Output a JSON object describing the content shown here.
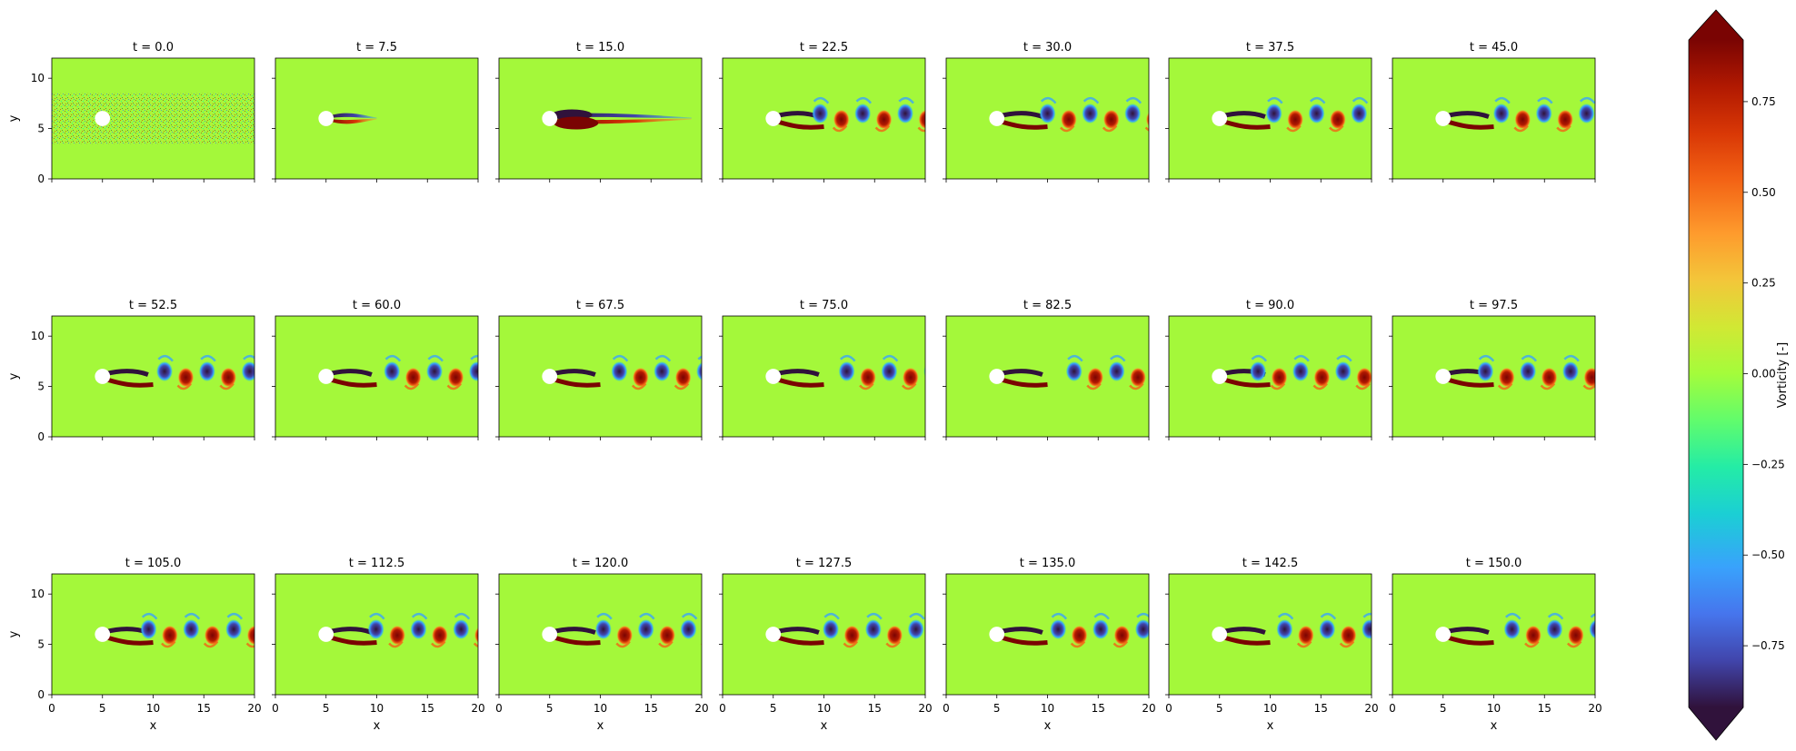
{
  "chart_data": {
    "type": "heatmap",
    "layout": {
      "rows": 3,
      "cols": 7
    },
    "xlabel": "x",
    "ylabel": "y",
    "xlim": [
      0,
      20
    ],
    "ylim": [
      0,
      12
    ],
    "xticks": [
      0,
      5,
      10,
      15,
      20
    ],
    "yticks": [
      0,
      5,
      10
    ],
    "cylinder": {
      "x": 5,
      "y": 6,
      "r": 0.75
    },
    "panels": [
      {
        "t": 0.0,
        "title": "t = 0.0"
      },
      {
        "t": 7.5,
        "title": "t = 7.5"
      },
      {
        "t": 15.0,
        "title": "t = 15.0"
      },
      {
        "t": 22.5,
        "title": "t = 22.5"
      },
      {
        "t": 30.0,
        "title": "t = 30.0"
      },
      {
        "t": 37.5,
        "title": "t = 37.5"
      },
      {
        "t": 45.0,
        "title": "t = 45.0"
      },
      {
        "t": 52.5,
        "title": "t = 52.5"
      },
      {
        "t": 60.0,
        "title": "t = 60.0"
      },
      {
        "t": 67.5,
        "title": "t = 67.5"
      },
      {
        "t": 75.0,
        "title": "t = 75.0"
      },
      {
        "t": 82.5,
        "title": "t = 82.5"
      },
      {
        "t": 90.0,
        "title": "t = 90.0"
      },
      {
        "t": 97.5,
        "title": "t = 97.5"
      },
      {
        "t": 105.0,
        "title": "t = 105.0"
      },
      {
        "t": 112.5,
        "title": "t = 112.5"
      },
      {
        "t": 120.0,
        "title": "t = 120.0"
      },
      {
        "t": 127.5,
        "title": "t = 127.5"
      },
      {
        "t": 135.0,
        "title": "t = 135.0"
      },
      {
        "t": 142.5,
        "title": "t = 142.5"
      },
      {
        "t": 150.0,
        "title": "t = 150.0"
      }
    ],
    "colorbar": {
      "label": "Vorticity [-]",
      "range": [
        -0.92,
        0.92
      ],
      "ticks": [
        0.75,
        0.5,
        0.25,
        0.0,
        -0.25,
        -0.5,
        -0.75
      ],
      "tick_labels": [
        "0.75",
        "0.50",
        "0.25",
        "0.00",
        "−0.25",
        "−0.50",
        "−0.75"
      ],
      "extend": "both",
      "colormap": "turbo"
    },
    "colors": {
      "background_field": "#a4f83a",
      "positive_vortex": "#7a0403",
      "negative_vortex": "#30123b",
      "cylinder": "#ffffff"
    }
  }
}
